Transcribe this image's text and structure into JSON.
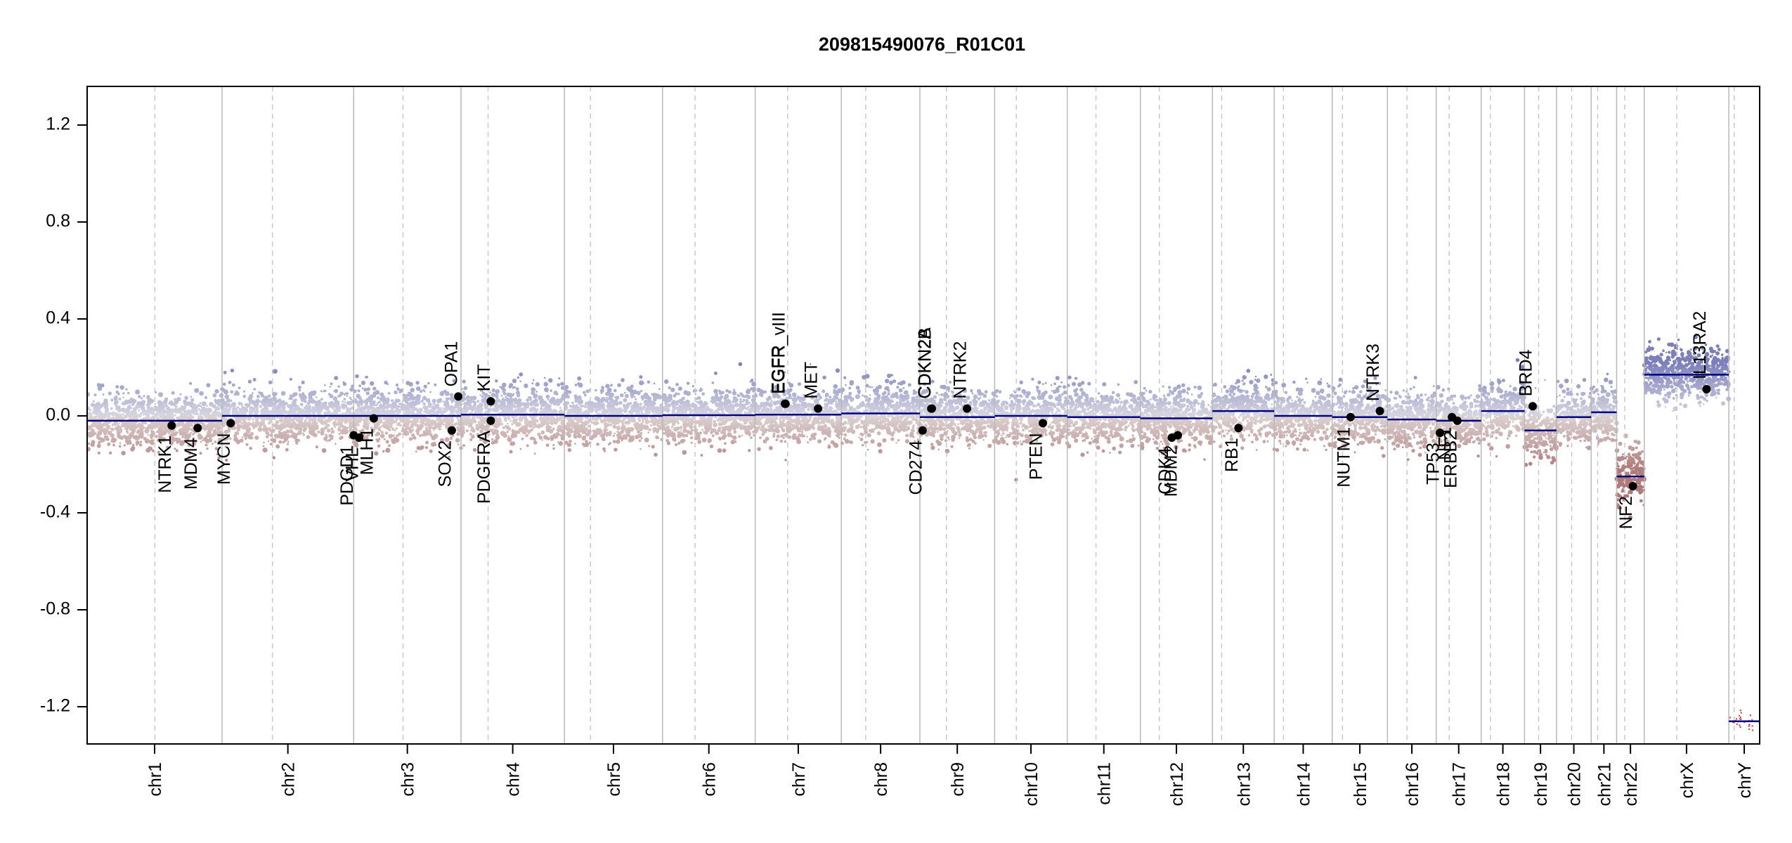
{
  "chart_data": {
    "type": "scatter",
    "title": "209815490076_R01C01",
    "xlabel": "",
    "ylabel": "",
    "ylim": [
      -1.35,
      1.35
    ],
    "yticks": [
      1.2,
      0.8,
      0.4,
      0.0,
      -0.4,
      -0.8,
      -1.2
    ],
    "ytick_labels": [
      "1.2",
      "0.8",
      "0.4",
      "0.0",
      "-0.4",
      "-0.8",
      "-1.2"
    ],
    "colors": {
      "gain": "#7b7fba",
      "loss": "#b07a7a",
      "segment": "#000080",
      "gene_point": "#000000"
    },
    "chromosomes": [
      {
        "name": "chr1",
        "size": 249,
        "cen": 125
      },
      {
        "name": "chr2",
        "size": 243,
        "cen": 93
      },
      {
        "name": "chr3",
        "size": 198,
        "cen": 91
      },
      {
        "name": "chr4",
        "size": 191,
        "cen": 50
      },
      {
        "name": "chr5",
        "size": 181,
        "cen": 48
      },
      {
        "name": "chr6",
        "size": 171,
        "cen": 60
      },
      {
        "name": "chr7",
        "size": 159,
        "cen": 60
      },
      {
        "name": "chr8",
        "size": 145,
        "cen": 45
      },
      {
        "name": "chr9",
        "size": 138,
        "cen": 49
      },
      {
        "name": "chr10",
        "size": 134,
        "cen": 40
      },
      {
        "name": "chr11",
        "size": 135,
        "cen": 53
      },
      {
        "name": "chr12",
        "size": 133,
        "cen": 35
      },
      {
        "name": "chr13",
        "size": 114,
        "cen": 17
      },
      {
        "name": "chr14",
        "size": 107,
        "cen": 17
      },
      {
        "name": "chr15",
        "size": 102,
        "cen": 19
      },
      {
        "name": "chr16",
        "size": 90,
        "cen": 36
      },
      {
        "name": "chr17",
        "size": 83,
        "cen": 24
      },
      {
        "name": "chr18",
        "size": 80,
        "cen": 17
      },
      {
        "name": "chr19",
        "size": 59,
        "cen": 26
      },
      {
        "name": "chr20",
        "size": 64,
        "cen": 28
      },
      {
        "name": "chr21",
        "size": 47,
        "cen": 12
      },
      {
        "name": "chr22",
        "size": 51,
        "cen": 15
      },
      {
        "name": "chrX",
        "size": 156,
        "cen": 60
      },
      {
        "name": "chrY",
        "size": 57,
        "cen": 10
      }
    ],
    "segments": [
      {
        "chr": "chr1",
        "start": 0,
        "end": 125,
        "y": -0.02
      },
      {
        "chr": "chr1",
        "start": 125,
        "end": 249,
        "y": -0.02
      },
      {
        "chr": "chr2",
        "start": 0,
        "end": 243,
        "y": 0.0
      },
      {
        "chr": "chr3",
        "start": 0,
        "end": 198,
        "y": 0.0
      },
      {
        "chr": "chr4",
        "start": 0,
        "end": 191,
        "y": 0.005
      },
      {
        "chr": "chr5",
        "start": 0,
        "end": 181,
        "y": 0.0
      },
      {
        "chr": "chr6",
        "start": 0,
        "end": 171,
        "y": 0.003
      },
      {
        "chr": "chr7",
        "start": 0,
        "end": 159,
        "y": 0.005
      },
      {
        "chr": "chr8",
        "start": 0,
        "end": 145,
        "y": 0.01
      },
      {
        "chr": "chr9",
        "start": 0,
        "end": 138,
        "y": -0.005
      },
      {
        "chr": "chr10",
        "start": 0,
        "end": 134,
        "y": 0.0
      },
      {
        "chr": "chr11",
        "start": 0,
        "end": 135,
        "y": -0.005
      },
      {
        "chr": "chr12",
        "start": 0,
        "end": 133,
        "y": -0.01
      },
      {
        "chr": "chr13",
        "start": 0,
        "end": 114,
        "y": 0.02
      },
      {
        "chr": "chr14",
        "start": 0,
        "end": 107,
        "y": 0.0
      },
      {
        "chr": "chr15",
        "start": 0,
        "end": 102,
        "y": -0.005
      },
      {
        "chr": "chr16",
        "start": 0,
        "end": 90,
        "y": -0.015
      },
      {
        "chr": "chr17",
        "start": 0,
        "end": 83,
        "y": -0.02
      },
      {
        "chr": "chr18",
        "start": 0,
        "end": 80,
        "y": 0.02
      },
      {
        "chr": "chr19",
        "start": 0,
        "end": 59,
        "y": -0.06
      },
      {
        "chr": "chr20",
        "start": 0,
        "end": 64,
        "y": -0.005
      },
      {
        "chr": "chr21",
        "start": 0,
        "end": 47,
        "y": 0.015
      },
      {
        "chr": "chr22",
        "start": 0,
        "end": 51,
        "y": -0.25
      },
      {
        "chr": "chrX",
        "start": 0,
        "end": 156,
        "y": 0.17
      },
      {
        "chr": "chrY",
        "start": 0,
        "end": 57,
        "y": -1.26
      }
    ],
    "genes": [
      {
        "name": "NTRK1",
        "chr": "chr1",
        "pos": 156,
        "y": -0.04,
        "side": "below"
      },
      {
        "name": "MDM4",
        "chr": "chr1",
        "pos": 204,
        "y": -0.05,
        "side": "below"
      },
      {
        "name": "MYCN",
        "chr": "chr2",
        "pos": 16,
        "y": -0.03,
        "side": "below"
      },
      {
        "name": "PDGD1",
        "chr": "chr3",
        "pos": 0,
        "y": -0.08,
        "side": "below"
      },
      {
        "name": "VHL",
        "chr": "chr3",
        "pos": 10,
        "y": -0.09,
        "side": "below"
      },
      {
        "name": "MLH1",
        "chr": "chr3",
        "pos": 37,
        "y": -0.01,
        "side": "below"
      },
      {
        "name": "SOX2",
        "chr": "chr3",
        "pos": 181,
        "y": -0.06,
        "side": "below"
      },
      {
        "name": "OPA1",
        "chr": "chr3",
        "pos": 193,
        "y": 0.08,
        "side": "above"
      },
      {
        "name": "KIT",
        "chr": "chr4",
        "pos": 55,
        "y": 0.06,
        "side": "above"
      },
      {
        "name": "PDGFRA",
        "chr": "chr4",
        "pos": 55,
        "y": -0.02,
        "side": "below"
      },
      {
        "name": "EGFR",
        "chr": "chr7",
        "pos": 55,
        "y": 0.05,
        "side": "above"
      },
      {
        "name": "EGFR_vIII",
        "chr": "chr7",
        "pos": 56,
        "y": 0.05,
        "side": "above"
      },
      {
        "name": "MET",
        "chr": "chr7",
        "pos": 116,
        "y": 0.03,
        "side": "above"
      },
      {
        "name": "CD274",
        "chr": "chr9",
        "pos": 5,
        "y": -0.06,
        "side": "below"
      },
      {
        "name": "CDKN2A",
        "chr": "chr9",
        "pos": 21,
        "y": 0.03,
        "side": "above"
      },
      {
        "name": "CDKN2B",
        "chr": "chr9",
        "pos": 22,
        "y": 0.03,
        "side": "above"
      },
      {
        "name": "NTRK2",
        "chr": "chr9",
        "pos": 87,
        "y": 0.03,
        "side": "above"
      },
      {
        "name": "PTEN",
        "chr": "chr10",
        "pos": 89,
        "y": -0.03,
        "side": "below"
      },
      {
        "name": "CDK4",
        "chr": "chr12",
        "pos": 58,
        "y": -0.09,
        "side": "below"
      },
      {
        "name": "MDM2",
        "chr": "chr12",
        "pos": 69,
        "y": -0.08,
        "side": "below"
      },
      {
        "name": "RB1",
        "chr": "chr13",
        "pos": 48,
        "y": -0.05,
        "side": "below"
      },
      {
        "name": "NUTM1",
        "chr": "chr15",
        "pos": 34,
        "y": -0.005,
        "side": "below"
      },
      {
        "name": "NTRK3",
        "chr": "chr15",
        "pos": 88,
        "y": 0.02,
        "side": "above"
      },
      {
        "name": "TP53",
        "chr": "chr17",
        "pos": 7,
        "y": -0.07,
        "side": "below"
      },
      {
        "name": "NF1",
        "chr": "chr17",
        "pos": 29,
        "y": -0.005,
        "side": "below"
      },
      {
        "name": "ERBB2",
        "chr": "chr17",
        "pos": 39,
        "y": -0.02,
        "side": "below"
      },
      {
        "name": "BRD4",
        "chr": "chr19",
        "pos": 15,
        "y": 0.04,
        "side": "above"
      },
      {
        "name": "NF2",
        "chr": "chr22",
        "pos": 30,
        "y": -0.29,
        "side": "below"
      },
      {
        "name": "IL13RA2",
        "chr": "chrX",
        "pos": 115,
        "y": 0.11,
        "side": "above"
      }
    ]
  }
}
